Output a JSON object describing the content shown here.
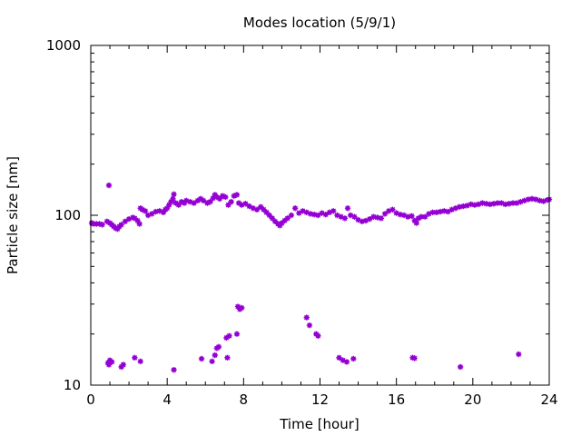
{
  "chart_data": {
    "type": "scatter",
    "title": "Modes location (5/9/1)",
    "xlabel": "Time [hour]",
    "ylabel": "Particle size [nm]",
    "xlim": [
      0,
      24
    ],
    "ylim": [
      10,
      1000
    ],
    "yscale": "log",
    "xticks": [
      0,
      4,
      8,
      12,
      16,
      20,
      24
    ],
    "yticks": [
      10,
      100,
      1000
    ],
    "ytick_labels": [
      "10",
      "100",
      "1000"
    ],
    "xtick_labels": [
      "0",
      "4",
      "8",
      "12",
      "16",
      "20",
      "24"
    ],
    "grid": false,
    "marker_color": "#9400d3",
    "series": [
      {
        "points": [
          [
            0.05,
            90
          ],
          [
            0.15,
            89
          ],
          [
            0.3,
            89
          ],
          [
            0.45,
            89
          ],
          [
            0.6,
            88
          ],
          [
            0.85,
            92
          ],
          [
            0.95,
            150
          ],
          [
            1.0,
            90
          ],
          [
            1.1,
            88
          ],
          [
            1.2,
            86
          ],
          [
            1.3,
            84
          ],
          [
            1.4,
            83
          ],
          [
            1.5,
            86
          ],
          [
            1.6,
            88
          ],
          [
            1.8,
            92
          ],
          [
            2.0,
            95
          ],
          [
            2.2,
            97
          ],
          [
            2.3,
            96
          ],
          [
            2.45,
            93
          ],
          [
            2.55,
            89
          ],
          [
            2.6,
            110
          ],
          [
            2.7,
            108
          ],
          [
            2.85,
            106
          ],
          [
            3.0,
            100
          ],
          [
            3.2,
            102
          ],
          [
            3.4,
            105
          ],
          [
            3.6,
            106
          ],
          [
            3.8,
            104
          ],
          [
            3.9,
            108
          ],
          [
            4.0,
            110
          ],
          [
            4.1,
            115
          ],
          [
            4.2,
            120
          ],
          [
            4.3,
            125
          ],
          [
            4.35,
            133
          ],
          [
            4.45,
            118
          ],
          [
            4.6,
            115
          ],
          [
            4.75,
            120
          ],
          [
            4.9,
            118
          ],
          [
            5.0,
            122
          ],
          [
            5.2,
            120
          ],
          [
            5.4,
            118
          ],
          [
            5.6,
            122
          ],
          [
            5.75,
            125
          ],
          [
            5.9,
            122
          ],
          [
            6.1,
            118
          ],
          [
            6.25,
            120
          ],
          [
            6.4,
            126
          ],
          [
            6.5,
            132
          ],
          [
            6.6,
            128
          ],
          [
            6.75,
            125
          ],
          [
            6.9,
            130
          ],
          [
            7.05,
            128
          ],
          [
            7.2,
            115
          ],
          [
            7.35,
            120
          ],
          [
            7.5,
            130
          ],
          [
            7.65,
            132
          ],
          [
            7.75,
            118
          ],
          [
            7.9,
            115
          ],
          [
            8.1,
            117
          ],
          [
            8.3,
            113
          ],
          [
            8.5,
            110
          ],
          [
            8.7,
            108
          ],
          [
            8.9,
            112
          ],
          [
            9.05,
            108
          ],
          [
            9.2,
            104
          ],
          [
            9.35,
            100
          ],
          [
            9.5,
            96
          ],
          [
            9.65,
            92
          ],
          [
            9.8,
            89
          ],
          [
            9.9,
            87
          ],
          [
            10.0,
            90
          ],
          [
            10.15,
            93
          ],
          [
            10.3,
            96
          ],
          [
            10.5,
            100
          ],
          [
            10.7,
            110
          ],
          [
            10.9,
            103
          ],
          [
            11.1,
            106
          ],
          [
            11.3,
            104
          ],
          [
            11.5,
            102
          ],
          [
            11.7,
            101
          ],
          [
            11.9,
            100
          ],
          [
            12.1,
            103
          ],
          [
            12.3,
            101
          ],
          [
            12.5,
            104
          ],
          [
            12.7,
            106
          ],
          [
            12.9,
            100
          ],
          [
            13.1,
            98
          ],
          [
            13.3,
            96
          ],
          [
            13.45,
            110
          ],
          [
            13.6,
            100
          ],
          [
            13.8,
            98
          ],
          [
            14.0,
            94
          ],
          [
            14.2,
            92
          ],
          [
            14.4,
            93
          ],
          [
            14.6,
            95
          ],
          [
            14.8,
            98
          ],
          [
            15.0,
            97
          ],
          [
            15.2,
            96
          ],
          [
            15.4,
            102
          ],
          [
            15.6,
            106
          ],
          [
            15.8,
            108
          ],
          [
            16.0,
            103
          ],
          [
            16.2,
            101
          ],
          [
            16.4,
            100
          ],
          [
            16.6,
            98
          ],
          [
            16.8,
            99
          ],
          [
            16.95,
            93
          ],
          [
            17.05,
            90
          ],
          [
            17.15,
            96
          ],
          [
            17.3,
            98
          ],
          [
            17.5,
            98
          ],
          [
            17.7,
            102
          ],
          [
            17.9,
            104
          ],
          [
            18.1,
            104
          ],
          [
            18.3,
            105
          ],
          [
            18.5,
            106
          ],
          [
            18.7,
            105
          ],
          [
            18.9,
            108
          ],
          [
            19.1,
            110
          ],
          [
            19.3,
            112
          ],
          [
            19.5,
            113
          ],
          [
            19.7,
            114
          ],
          [
            19.9,
            116
          ],
          [
            20.1,
            115
          ],
          [
            20.3,
            116
          ],
          [
            20.5,
            118
          ],
          [
            20.7,
            117
          ],
          [
            20.9,
            116
          ],
          [
            21.1,
            117
          ],
          [
            21.3,
            118
          ],
          [
            21.5,
            118
          ],
          [
            21.7,
            116
          ],
          [
            21.9,
            117
          ],
          [
            22.1,
            118
          ],
          [
            22.3,
            118
          ],
          [
            22.5,
            120
          ],
          [
            22.7,
            122
          ],
          [
            22.9,
            124
          ],
          [
            23.1,
            125
          ],
          [
            23.3,
            124
          ],
          [
            23.5,
            122
          ],
          [
            23.7,
            121
          ],
          [
            23.9,
            123
          ],
          [
            24.0,
            124
          ]
        ]
      },
      {
        "points": [
          [
            0.9,
            13.5
          ],
          [
            0.95,
            13.2
          ],
          [
            1.0,
            14.0
          ],
          [
            1.1,
            13.7
          ],
          [
            1.6,
            12.8
          ],
          [
            1.7,
            13.2
          ],
          [
            2.3,
            14.5
          ],
          [
            2.6,
            13.8
          ],
          [
            4.35,
            12.3
          ],
          [
            5.8,
            14.3
          ],
          [
            6.35,
            13.8
          ],
          [
            6.5,
            15.0
          ],
          [
            6.6,
            16.5
          ],
          [
            6.7,
            16.8
          ],
          [
            7.1,
            19.0
          ],
          [
            7.15,
            14.5
          ],
          [
            7.25,
            19.5
          ],
          [
            7.65,
            20.0
          ],
          [
            7.7,
            29.0
          ],
          [
            7.8,
            28.0
          ],
          [
            7.9,
            28.5
          ],
          [
            11.3,
            25.0
          ],
          [
            11.45,
            22.5
          ],
          [
            11.8,
            20.0
          ],
          [
            11.9,
            19.5
          ],
          [
            13.0,
            14.5
          ],
          [
            13.2,
            14.0
          ],
          [
            13.4,
            13.7
          ],
          [
            13.75,
            14.3
          ],
          [
            16.85,
            14.5
          ],
          [
            16.95,
            14.4
          ],
          [
            19.35,
            12.8
          ],
          [
            22.4,
            15.2
          ]
        ]
      }
    ]
  }
}
